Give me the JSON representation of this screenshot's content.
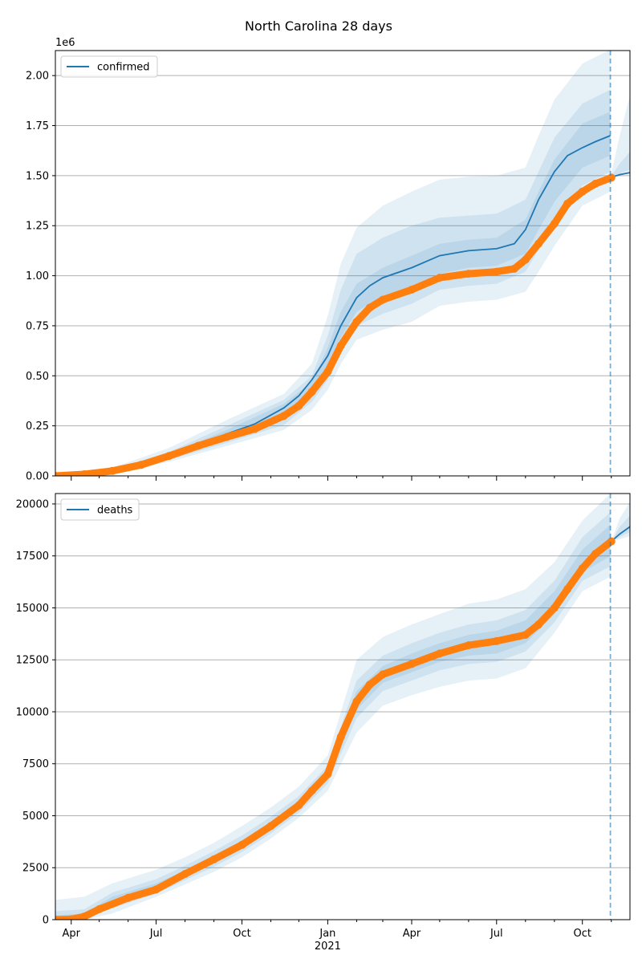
{
  "figure": {
    "title": "North Carolina 28 days"
  },
  "colors": {
    "model": "#1f77b4",
    "observed": "#ff7f0e",
    "grid": "#b0b0b0"
  },
  "chart_data": [
    {
      "type": "line",
      "title": "North Carolina 28 days",
      "legend": {
        "label": "confirmed",
        "position": "top-left"
      },
      "x_range": [
        "2020-03-15",
        "2021-11-21"
      ],
      "forecast_cutoff": "2021-10-31",
      "ylim": [
        0,
        2125000
      ],
      "y_offset_label": "1e6",
      "y_ticks": [
        0,
        250000,
        500000,
        750000,
        1000000,
        1250000,
        1500000,
        1750000,
        2000000
      ],
      "y_tick_labels": [
        "0.00",
        "0.25",
        "0.50",
        "0.75",
        "1.00",
        "1.25",
        "1.50",
        "1.75",
        "2.00"
      ],
      "x_tick_labels": [
        "Apr",
        "Jul",
        "Oct",
        "Jan",
        "Apr",
        "Jul",
        "Oct"
      ],
      "x_tick_dates": [
        "2020-04-01",
        "2020-07-01",
        "2020-10-01",
        "2021-01-01",
        "2021-04-01",
        "2021-07-01",
        "2021-10-01"
      ],
      "x_year_label": "2021",
      "grid": "horizontal",
      "observed": {
        "x": [
          "2020-03-15",
          "2020-04-15",
          "2020-05-15",
          "2020-06-15",
          "2020-07-15",
          "2020-08-15",
          "2020-09-15",
          "2020-10-15",
          "2020-11-15",
          "2020-12-01",
          "2020-12-15",
          "2021-01-01",
          "2021-01-15",
          "2021-02-01",
          "2021-02-15",
          "2021-03-01",
          "2021-04-01",
          "2021-05-01",
          "2021-06-01",
          "2021-07-01",
          "2021-07-20",
          "2021-08-01",
          "2021-08-15",
          "2021-09-01",
          "2021-09-15",
          "2021-10-01",
          "2021-10-15",
          "2021-11-01"
        ],
        "y": [
          0,
          8000,
          25000,
          55000,
          100000,
          150000,
          195000,
          235000,
          300000,
          350000,
          420000,
          520000,
          650000,
          770000,
          840000,
          880000,
          930000,
          990000,
          1010000,
          1020000,
          1035000,
          1080000,
          1160000,
          1260000,
          1360000,
          1420000,
          1460000,
          1490000
        ]
      },
      "model": {
        "x": [
          "2020-03-15",
          "2020-04-15",
          "2020-05-15",
          "2020-06-15",
          "2020-07-15",
          "2020-08-15",
          "2020-09-15",
          "2020-10-15",
          "2020-11-15",
          "2020-12-01",
          "2020-12-15",
          "2021-01-01",
          "2021-01-15",
          "2021-02-01",
          "2021-02-15",
          "2021-03-01",
          "2021-04-01",
          "2021-05-01",
          "2021-06-01",
          "2021-07-01",
          "2021-07-20",
          "2021-08-01",
          "2021-08-15",
          "2021-09-01",
          "2021-09-15",
          "2021-10-01",
          "2021-10-15",
          "2021-10-31"
        ],
        "y": [
          0,
          8000,
          25000,
          55000,
          100000,
          160000,
          210000,
          260000,
          340000,
          400000,
          480000,
          600000,
          750000,
          890000,
          950000,
          990000,
          1040000,
          1100000,
          1125000,
          1135000,
          1160000,
          1230000,
          1380000,
          1520000,
          1600000,
          1640000,
          1670000,
          1700000
        ]
      },
      "forecast": {
        "x": [
          "2021-10-31",
          "2021-11-10",
          "2021-11-21"
        ],
        "y": [
          1490000,
          1505000,
          1515000
        ]
      },
      "bands": [
        {
          "x": [
            "2020-03-15",
            "2020-05-15",
            "2020-07-15",
            "2020-09-15",
            "2020-11-15",
            "2020-12-15",
            "2021-01-01",
            "2021-01-15",
            "2021-02-01",
            "2021-03-01",
            "2021-04-01",
            "2021-05-01",
            "2021-06-01",
            "2021-07-01",
            "2021-08-01",
            "2021-08-15",
            "2021-09-01",
            "2021-10-01",
            "2021-10-31"
          ],
          "low": [
            0,
            15000,
            70000,
            150000,
            230000,
            330000,
            430000,
            560000,
            680000,
            730000,
            770000,
            850000,
            870000,
            880000,
            920000,
            1020000,
            1150000,
            1350000,
            1420000
          ],
          "high": [
            0,
            40000,
            140000,
            280000,
            410000,
            560000,
            800000,
            1060000,
            1240000,
            1350000,
            1420000,
            1480000,
            1495000,
            1500000,
            1540000,
            1700000,
            1880000,
            2060000,
            2130000
          ]
        },
        {
          "x": [
            "2020-03-15",
            "2020-05-15",
            "2020-07-15",
            "2020-09-15",
            "2020-11-15",
            "2020-12-15",
            "2021-01-01",
            "2021-01-15",
            "2021-02-01",
            "2021-03-01",
            "2021-04-01",
            "2021-05-01",
            "2021-06-01",
            "2021-07-01",
            "2021-08-01",
            "2021-08-15",
            "2021-09-01",
            "2021-10-01",
            "2021-10-31"
          ],
          "low": [
            0,
            18000,
            80000,
            165000,
            255000,
            370000,
            480000,
            620000,
            750000,
            810000,
            860000,
            930000,
            950000,
            960000,
            1020000,
            1130000,
            1260000,
            1450000,
            1520000
          ],
          "high": [
            0,
            32000,
            120000,
            250000,
            380000,
            500000,
            700000,
            930000,
            1110000,
            1190000,
            1250000,
            1290000,
            1300000,
            1310000,
            1380000,
            1520000,
            1690000,
            1860000,
            1930000
          ]
        },
        {
          "x": [
            "2020-03-15",
            "2020-05-15",
            "2020-07-15",
            "2020-09-15",
            "2020-11-15",
            "2020-12-15",
            "2021-01-01",
            "2021-01-15",
            "2021-02-01",
            "2021-03-01",
            "2021-04-01",
            "2021-05-01",
            "2021-06-01",
            "2021-07-01",
            "2021-08-01",
            "2021-08-15",
            "2021-09-01",
            "2021-10-01",
            "2021-10-31"
          ],
          "low": [
            0,
            21000,
            88000,
            180000,
            285000,
            420000,
            540000,
            690000,
            820000,
            900000,
            950000,
            1010000,
            1040000,
            1050000,
            1110000,
            1230000,
            1370000,
            1540000,
            1600000
          ],
          "high": [
            0,
            28000,
            108000,
            230000,
            360000,
            470000,
            640000,
            820000,
            960000,
            1040000,
            1100000,
            1160000,
            1180000,
            1190000,
            1280000,
            1420000,
            1580000,
            1760000,
            1820000
          ]
        },
        {
          "x": [
            "2021-10-31",
            "2021-11-10",
            "2021-11-21"
          ],
          "low": [
            1490000,
            1510000,
            1530000
          ],
          "high": [
            1490000,
            1700000,
            1900000
          ]
        },
        {
          "x": [
            "2021-10-31",
            "2021-11-10",
            "2021-11-21"
          ],
          "low": [
            1490000,
            1500000,
            1510000
          ],
          "high": [
            1490000,
            1560000,
            1620000
          ]
        }
      ]
    },
    {
      "type": "line",
      "legend": {
        "label": "deaths",
        "position": "top-left"
      },
      "x_range": [
        "2020-03-15",
        "2021-11-21"
      ],
      "forecast_cutoff": "2021-10-31",
      "ylim": [
        0,
        20500
      ],
      "y_ticks": [
        0,
        2500,
        5000,
        7500,
        10000,
        12500,
        15000,
        17500,
        20000
      ],
      "y_tick_labels": [
        "0",
        "2500",
        "5000",
        "7500",
        "10000",
        "12500",
        "15000",
        "17500",
        "20000"
      ],
      "x_tick_labels": [
        "Apr",
        "Jul",
        "Oct",
        "Jan",
        "Apr",
        "Jul",
        "Oct"
      ],
      "x_tick_dates": [
        "2020-04-01",
        "2020-07-01",
        "2020-10-01",
        "2021-01-01",
        "2021-04-01",
        "2021-07-01",
        "2021-10-01"
      ],
      "x_year_label": "2021",
      "grid": "horizontal",
      "observed": {
        "x": [
          "2020-03-15",
          "2020-04-01",
          "2020-04-15",
          "2020-05-01",
          "2020-06-01",
          "2020-07-01",
          "2020-08-01",
          "2020-09-01",
          "2020-10-01",
          "2020-11-01",
          "2020-12-01",
          "2020-12-15",
          "2021-01-01",
          "2021-01-15",
          "2021-02-01",
          "2021-02-15",
          "2021-03-01",
          "2021-04-01",
          "2021-05-01",
          "2021-06-01",
          "2021-07-01",
          "2021-08-01",
          "2021-08-15",
          "2021-09-01",
          "2021-09-15",
          "2021-10-01",
          "2021-10-15",
          "2021-11-01"
        ],
        "y": [
          0,
          20,
          150,
          500,
          1050,
          1450,
          2200,
          2900,
          3600,
          4500,
          5500,
          6200,
          7000,
          8800,
          10500,
          11300,
          11800,
          12300,
          12800,
          13200,
          13400,
          13700,
          14200,
          15000,
          15900,
          16900,
          17600,
          18200
        ]
      },
      "forecast": {
        "x": [
          "2021-11-01",
          "2021-11-10",
          "2021-11-21"
        ],
        "y": [
          18200,
          18550,
          18900
        ]
      },
      "bands": [
        {
          "x": [
            "2020-03-15",
            "2020-04-15",
            "2020-05-15",
            "2020-07-01",
            "2020-08-01",
            "2020-09-01",
            "2020-10-01",
            "2020-11-01",
            "2020-12-01",
            "2021-01-01",
            "2021-02-01",
            "2021-03-01",
            "2021-04-01",
            "2021-05-01",
            "2021-06-01",
            "2021-07-01",
            "2021-08-01",
            "2021-09-01",
            "2021-10-01",
            "2021-10-31"
          ],
          "low": [
            0,
            0,
            300,
            1100,
            1700,
            2300,
            3000,
            3900,
            4900,
            6200,
            9000,
            10300,
            10800,
            11200,
            11500,
            11600,
            12100,
            13800,
            15800,
            16500
          ],
          "high": [
            950,
            1100,
            1750,
            2400,
            3000,
            3700,
            4500,
            5400,
            6400,
            7900,
            12500,
            13600,
            14200,
            14700,
            15200,
            15400,
            15900,
            17200,
            19200,
            20500
          ]
        },
        {
          "x": [
            "2020-03-15",
            "2020-04-15",
            "2020-05-15",
            "2020-07-01",
            "2020-08-01",
            "2020-09-01",
            "2020-10-01",
            "2020-11-01",
            "2020-12-01",
            "2021-01-01",
            "2021-02-01",
            "2021-03-01",
            "2021-04-01",
            "2021-05-01",
            "2021-06-01",
            "2021-07-01",
            "2021-08-01",
            "2021-09-01",
            "2021-10-01",
            "2021-10-31"
          ],
          "low": [
            0,
            80,
            550,
            1250,
            1900,
            2550,
            3250,
            4150,
            5150,
            6550,
            9700,
            11000,
            11500,
            12000,
            12300,
            12400,
            12900,
            14300,
            16300,
            17000
          ],
          "high": [
            400,
            500,
            1300,
            1950,
            2600,
            3300,
            4050,
            4950,
            5950,
            7400,
            11500,
            12700,
            13300,
            13800,
            14200,
            14400,
            14900,
            16300,
            18400,
            19600
          ]
        },
        {
          "x": [
            "2020-03-15",
            "2020-04-15",
            "2020-05-15",
            "2020-07-01",
            "2020-08-01",
            "2020-09-01",
            "2020-10-01",
            "2020-11-01",
            "2020-12-01",
            "2021-01-01",
            "2021-02-01",
            "2021-03-01",
            "2021-04-01",
            "2021-05-01",
            "2021-06-01",
            "2021-07-01",
            "2021-08-01",
            "2021-09-01",
            "2021-10-01",
            "2021-10-31"
          ],
          "low": [
            0,
            120,
            700,
            1350,
            2050,
            2700,
            3400,
            4300,
            5300,
            6750,
            10100,
            11400,
            11900,
            12400,
            12700,
            12800,
            13300,
            14700,
            16700,
            17500
          ],
          "high": [
            200,
            300,
            1100,
            1750,
            2350,
            3050,
            3800,
            4700,
            5700,
            7150,
            11000,
            12200,
            12800,
            13300,
            13700,
            13900,
            14400,
            15800,
            17800,
            19000
          ]
        },
        {
          "x": [
            "2021-11-01",
            "2021-11-10",
            "2021-11-21"
          ],
          "low": [
            18200,
            18300,
            18450
          ],
          "high": [
            18200,
            19300,
            20100
          ]
        },
        {
          "x": [
            "2021-11-01",
            "2021-11-10",
            "2021-11-21"
          ],
          "low": [
            18200,
            18400,
            18650
          ],
          "high": [
            18200,
            18900,
            19450
          ]
        }
      ]
    }
  ]
}
